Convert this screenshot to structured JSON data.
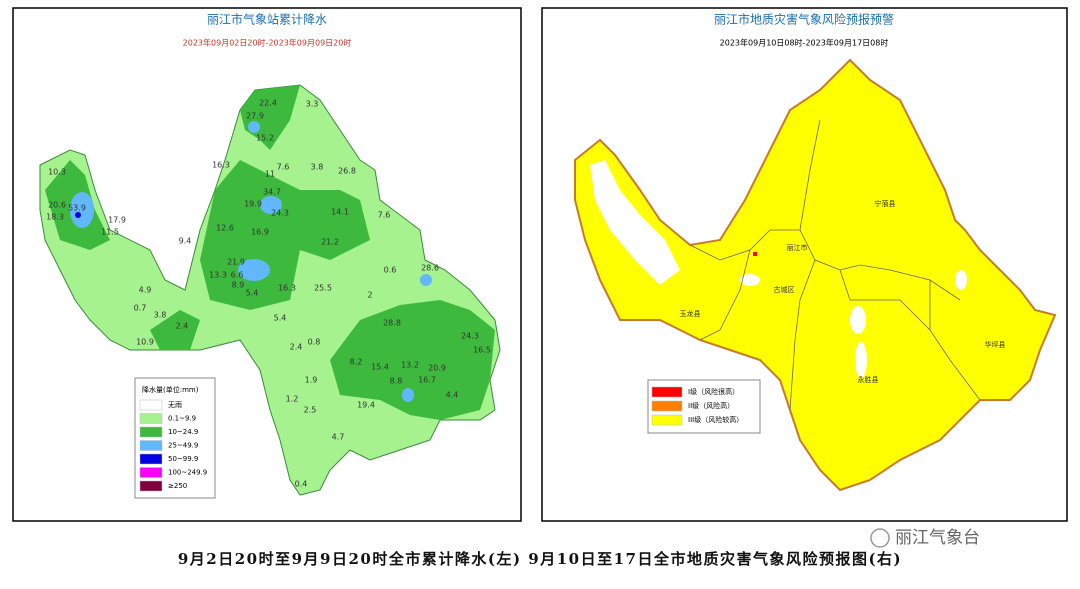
{
  "left_map": {
    "title": "丽江市气象站累计降水",
    "subtitle": "2023年09月02日20时-2023年09月09日20时",
    "legend": {
      "title": "降水量(单位:mm)",
      "items": [
        {
          "label": "无雨",
          "color": "#ffffff"
        },
        {
          "label": "0.1~9.9",
          "color": "#a6f28f"
        },
        {
          "label": "10~24.9",
          "color": "#3dba3d"
        },
        {
          "label": "25~49.9",
          "color": "#61b8ff"
        },
        {
          "label": "50~99.9",
          "color": "#0000e1"
        },
        {
          "label": "100~249.9",
          "color": "#fa00fa"
        },
        {
          "label": "≥250",
          "color": "#800040"
        }
      ]
    },
    "stations": [
      "22.4",
      "3.3",
      "27.9",
      "15.2",
      "16.3",
      "7.6",
      "3.8",
      "26.8",
      "11",
      "10.3",
      "20.6",
      "53.9",
      "18.3",
      "17.9",
      "11.5",
      "34.7",
      "19.9",
      "24.3",
      "14.1",
      "12.6",
      "16.9",
      "7.6",
      "21.2",
      "9.4",
      "21.9",
      "13.3",
      "6.6",
      "8.9",
      "4.9",
      "5.4",
      "16.3",
      "25.5",
      "2",
      "0.6",
      "28.6",
      "0.7",
      "3.8",
      "2.4",
      "10.9",
      "5.4",
      "28.8",
      "13.2",
      "24.3",
      "16.5",
      "19.4",
      "4.4",
      "1.2",
      "2.5",
      "4.7",
      "0.4",
      "2.4",
      "0.8",
      "1.9",
      "8.2",
      "15.4",
      "8.8",
      "16.7",
      "20.9"
    ]
  },
  "right_map": {
    "title": "丽江市地质灾害气象风险预报预警",
    "subtitle": "2023年09月10日08时-2023年09月17日08时",
    "legend": {
      "items": [
        {
          "label": "I级（风险很高）",
          "color": "#ff0000"
        },
        {
          "label": "II级（风险高）",
          "color": "#ff8000"
        },
        {
          "label": "III级（风险较高）",
          "color": "#ffff00"
        }
      ]
    },
    "places": [
      "玉龙县",
      "古城区",
      "丽江市",
      "宁蒗县",
      "永胜县",
      "华坪县"
    ]
  },
  "caption": "9月2日20时至9月9日20时全市累计降水(左) 9月10日至17日全市地质灾害气象风险预报图(右)",
  "watermark": "丽江气象台"
}
